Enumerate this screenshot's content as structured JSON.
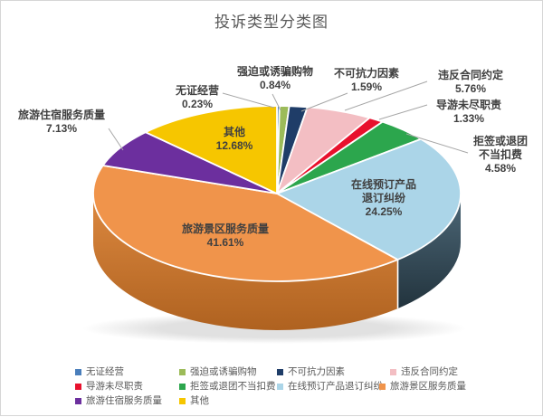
{
  "title": "投诉类型分类图",
  "chart_data": {
    "type": "pie",
    "style": "3d",
    "title": "投诉类型分类图",
    "unit": "%",
    "start_angle_deg": 0,
    "direction": "clockwise",
    "legend_position": "bottom",
    "slices": [
      {
        "label": "无证经营",
        "value": 0.23,
        "pct_text": "0.23%",
        "color": "#4A7EBB",
        "label_lines": [
          "无证经营"
        ],
        "label_placement": "outside"
      },
      {
        "label": "强迫或诱骗购物",
        "value": 0.84,
        "pct_text": "0.84%",
        "color": "#9CBB59",
        "label_lines": [
          "强迫或诱骗购物"
        ],
        "label_placement": "outside"
      },
      {
        "label": "不可抗力因素",
        "value": 1.59,
        "pct_text": "1.59%",
        "color": "#1F3D68",
        "label_lines": [
          "不可抗力因素"
        ],
        "label_placement": "outside"
      },
      {
        "label": "违反合同约定",
        "value": 5.76,
        "pct_text": "5.76%",
        "color": "#F3BEC3",
        "label_lines": [
          "违反合同约定"
        ],
        "label_placement": "outside"
      },
      {
        "label": "导游未尽职责",
        "value": 1.33,
        "pct_text": "1.33%",
        "color": "#E8112D",
        "label_lines": [
          "导游未尽职责"
        ],
        "label_placement": "outside"
      },
      {
        "label": "拒签或退团不当扣费",
        "value": 4.58,
        "pct_text": "4.58%",
        "color": "#2CA64D",
        "label_lines": [
          "拒签或退团",
          "不当扣费"
        ],
        "label_placement": "outside"
      },
      {
        "label": "在线预订产品退订纠纷",
        "value": 24.25,
        "pct_text": "24.25%",
        "color": "#ABD5E8",
        "label_lines": [
          "在线预订产品",
          "退订纠纷"
        ],
        "label_placement": "inside",
        "side_colors": [
          "#4E6979",
          "#22333D"
        ]
      },
      {
        "label": "旅游景区服务质量",
        "value": 41.61,
        "pct_text": "41.61%",
        "color": "#F0944B",
        "label_lines": [
          "旅游景区服务质量"
        ],
        "label_placement": "inside",
        "side_colors": [
          "#DD8940",
          "#AF6220"
        ]
      },
      {
        "label": "旅游住宿服务质量",
        "value": 7.13,
        "pct_text": "7.13%",
        "color": "#6C2F9E",
        "label_lines": [
          "旅游住宿服务质量"
        ],
        "label_placement": "outside"
      },
      {
        "label": "其他",
        "value": 12.68,
        "pct_text": "12.68%",
        "color": "#F6C600",
        "label_lines": [
          "其他"
        ],
        "label_placement": "inside"
      }
    ]
  },
  "colors": {
    "title_text": "#595959",
    "label_text": "#404040",
    "leader_line": "#A6A6A6",
    "legend_text": "#595959",
    "background": "#FFFFFF",
    "frame_border": "#D6D6D6"
  }
}
